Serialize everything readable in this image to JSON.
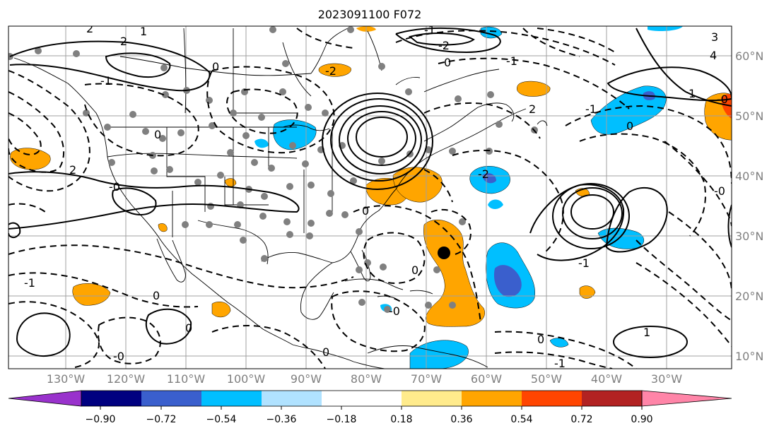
{
  "title": "2023091100 F072",
  "lon_ticks": [
    "130°W",
    "120°W",
    "110°W",
    "100°W",
    "90°W",
    "80°W",
    "70°W",
    "60°W",
    "50°W",
    "40°W",
    "30°W"
  ],
  "lat_ticks": [
    "60°N",
    "50°N",
    "40°N",
    "30°N",
    "20°N",
    "10°N"
  ],
  "colorbar": {
    "colors": [
      "#9932cc",
      "#000080",
      "#3a5fcd",
      "#00bfff",
      "#b0e2ff",
      "#ffffff",
      "#ffeb8c",
      "#ffa500",
      "#ff4500",
      "#b22222",
      "#ff85a8"
    ],
    "ticks": [
      "−0.90",
      "−0.72",
      "−0.54",
      "−0.36",
      "−0.18",
      "0.18",
      "0.36",
      "0.54",
      "0.72",
      "0.90"
    ]
  },
  "contour_labels": [
    "2",
    "2",
    "1",
    "-1",
    "0",
    "0",
    "-2",
    "-1",
    "2",
    "-1",
    "0",
    "-2",
    "2",
    "-1",
    "0",
    "1",
    "3",
    "4",
    "-0",
    "0",
    "-2",
    "-1",
    "0",
    "-0",
    "0",
    "-1",
    "-1",
    "0",
    "0",
    "0",
    "-0",
    "-0",
    "1",
    "-0"
  ],
  "storm_marker": "tropical-cyclone-center"
}
